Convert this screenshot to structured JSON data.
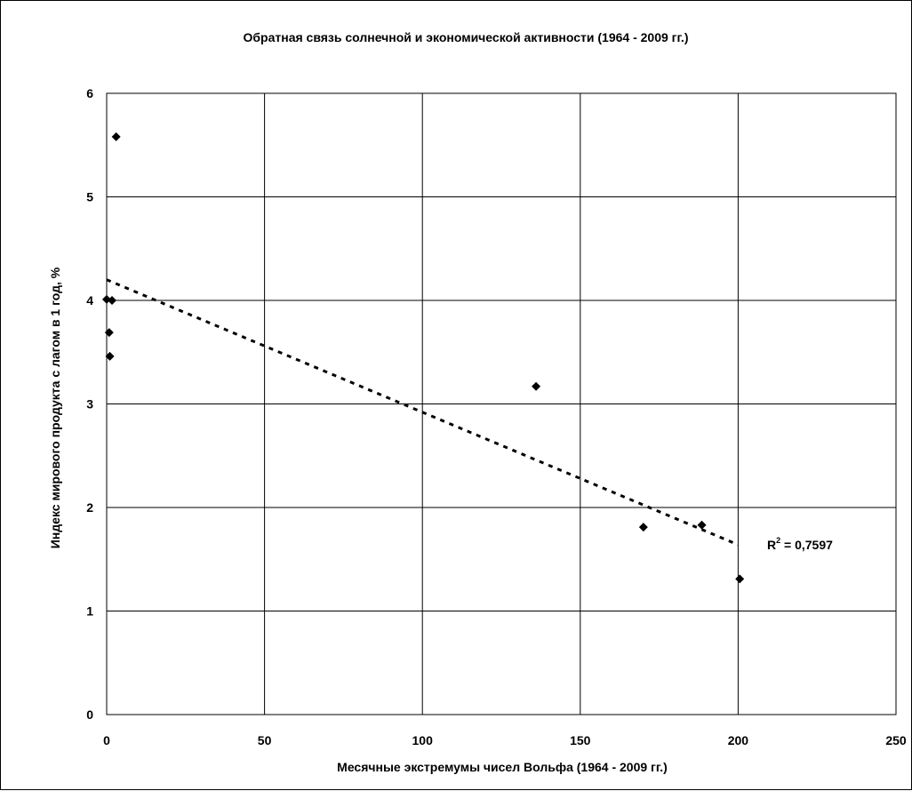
{
  "chart_data": {
    "type": "scatter",
    "title": "Обратная связь солнечной и экономической активности (1964 - 2009 гг.)",
    "xlabel": "Месячные экстремумы чисел Вольфа (1964 - 2009 гг.)",
    "ylabel": "Индекс мирового продукта с лагом в 1 год, %",
    "xlim": [
      0,
      250
    ],
    "ylim": [
      0,
      6
    ],
    "x_ticks": [
      0,
      50,
      100,
      150,
      200,
      250
    ],
    "y_ticks": [
      0,
      1,
      2,
      3,
      4,
      5,
      6
    ],
    "x_tick_labels": [
      "0",
      "50",
      "100",
      "150",
      "200",
      "250"
    ],
    "y_tick_labels": [
      "0",
      "1",
      "2",
      "3",
      "4",
      "5",
      "6"
    ],
    "grid": true,
    "points": [
      {
        "x": 0,
        "y": 4.01
      },
      {
        "x": 1.7,
        "y": 4.0
      },
      {
        "x": 0.8,
        "y": 3.69
      },
      {
        "x": 1.0,
        "y": 3.46
      },
      {
        "x": 3.0,
        "y": 5.58
      },
      {
        "x": 136,
        "y": 3.17
      },
      {
        "x": 170,
        "y": 1.81
      },
      {
        "x": 188.5,
        "y": 1.83
      },
      {
        "x": 200.5,
        "y": 1.31
      }
    ],
    "trendline": {
      "style": "dotted",
      "x": [
        0,
        200
      ],
      "y": [
        4.2,
        1.64
      ]
    },
    "annotation": {
      "base": "R",
      "sup": "2",
      "rest": " = 0,7597"
    },
    "colors": {
      "marker": "#000000",
      "grid": "#000000",
      "background": "#ffffff"
    }
  }
}
